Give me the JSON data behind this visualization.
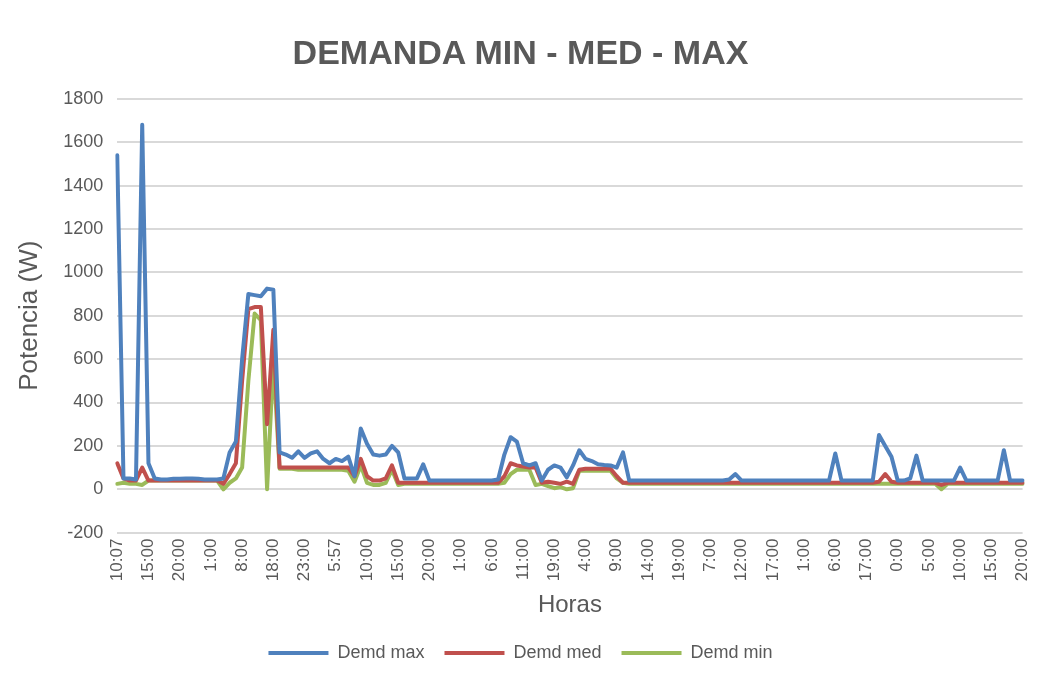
{
  "chart_data": {
    "type": "line",
    "title": "DEMANDA MIN - MED - MAX",
    "xlabel": "Horas",
    "ylabel": "Potencia (W)",
    "categories": [
      "10:07",
      null,
      null,
      null,
      null,
      "15:00",
      null,
      null,
      null,
      null,
      "20:00",
      null,
      null,
      null,
      null,
      "1:00",
      null,
      null,
      null,
      null,
      "8:00",
      null,
      null,
      null,
      null,
      "18:00",
      null,
      null,
      null,
      null,
      "23:00",
      null,
      null,
      null,
      null,
      "5:57",
      null,
      null,
      null,
      null,
      "10:00",
      null,
      null,
      null,
      null,
      "15:00",
      null,
      null,
      null,
      null,
      "20:00",
      null,
      null,
      null,
      null,
      "1:00",
      null,
      null,
      null,
      null,
      "6:00",
      null,
      null,
      null,
      null,
      "11:00",
      null,
      null,
      null,
      null,
      "19:00",
      null,
      null,
      null,
      null,
      "4:00",
      null,
      null,
      null,
      null,
      "9:00",
      null,
      null,
      null,
      null,
      "14:00",
      null,
      null,
      null,
      null,
      "19:00",
      null,
      null,
      null,
      null,
      "7:00",
      null,
      null,
      null,
      null,
      "12:00",
      null,
      null,
      null,
      null,
      "17:00",
      null,
      null,
      null,
      null,
      "1:00",
      null,
      null,
      null,
      null,
      "6:00",
      null,
      null,
      null,
      null,
      "17:00",
      null,
      null,
      null,
      null,
      "0:00",
      null,
      null,
      null,
      null,
      "5:00",
      null,
      null,
      null,
      null,
      "10:00",
      null,
      null,
      null,
      null,
      "15:00",
      null,
      null,
      null,
      null,
      "20:00"
    ],
    "series": [
      {
        "name": "Demd max",
        "color": "#4f81bd",
        "values": [
          1540,
          50,
          50,
          45,
          1680,
          120,
          50,
          45,
          45,
          48,
          48,
          50,
          50,
          48,
          45,
          45,
          45,
          50,
          170,
          220,
          600,
          900,
          895,
          890,
          925,
          920,
          170,
          160,
          145,
          175,
          145,
          165,
          175,
          140,
          120,
          140,
          130,
          150,
          60,
          280,
          210,
          160,
          155,
          160,
          200,
          170,
          50,
          50,
          50,
          115,
          40,
          40,
          40,
          40,
          40,
          40,
          40,
          40,
          40,
          40,
          40,
          45,
          160,
          240,
          220,
          120,
          110,
          120,
          40,
          90,
          110,
          100,
          55,
          110,
          180,
          140,
          130,
          115,
          112,
          110,
          100,
          170,
          40,
          40,
          40,
          40,
          40,
          40,
          40,
          40,
          40,
          40,
          40,
          40,
          40,
          40,
          40,
          40,
          45,
          70,
          40,
          40,
          40,
          40,
          40,
          40,
          40,
          40,
          40,
          40,
          40,
          40,
          40,
          40,
          40,
          165,
          40,
          40,
          40,
          40,
          40,
          40,
          250,
          200,
          150,
          40,
          40,
          50,
          155,
          40,
          40,
          40,
          40,
          40,
          40,
          100,
          40,
          40,
          40,
          40,
          40,
          40,
          180,
          40,
          40,
          40
        ]
      },
      {
        "name": "Demd med",
        "color": "#c0504d",
        "values": [
          120,
          50,
          40,
          40,
          100,
          40,
          40,
          40,
          40,
          40,
          40,
          40,
          40,
          40,
          40,
          40,
          40,
          25,
          70,
          120,
          500,
          830,
          840,
          840,
          300,
          735,
          100,
          100,
          100,
          100,
          100,
          100,
          100,
          100,
          100,
          100,
          100,
          100,
          60,
          140,
          60,
          40,
          40,
          50,
          110,
          30,
          30,
          30,
          30,
          30,
          30,
          30,
          30,
          30,
          30,
          30,
          30,
          30,
          30,
          30,
          30,
          30,
          60,
          120,
          110,
          105,
          100,
          100,
          30,
          35,
          30,
          25,
          35,
          25,
          90,
          95,
          95,
          95,
          95,
          95,
          60,
          30,
          30,
          30,
          30,
          30,
          30,
          30,
          30,
          30,
          30,
          30,
          30,
          30,
          30,
          30,
          30,
          30,
          30,
          30,
          30,
          30,
          30,
          30,
          30,
          30,
          30,
          30,
          30,
          30,
          30,
          30,
          30,
          30,
          30,
          30,
          30,
          30,
          30,
          30,
          30,
          30,
          35,
          70,
          35,
          30,
          30,
          30,
          30,
          30,
          30,
          30,
          20,
          30,
          30,
          30,
          30,
          30,
          30,
          30,
          30,
          30,
          30,
          30,
          30,
          30
        ]
      },
      {
        "name": "Demd min",
        "color": "#9bbb59",
        "values": [
          25,
          30,
          25,
          25,
          20,
          40,
          40,
          40,
          40,
          40,
          40,
          40,
          40,
          40,
          40,
          40,
          40,
          0,
          30,
          50,
          100,
          500,
          810,
          780,
          0,
          590,
          95,
          95,
          95,
          90,
          90,
          90,
          90,
          90,
          90,
          90,
          90,
          85,
          35,
          110,
          30,
          20,
          20,
          30,
          90,
          20,
          25,
          25,
          25,
          25,
          25,
          25,
          25,
          25,
          25,
          25,
          25,
          25,
          25,
          25,
          25,
          25,
          30,
          70,
          90,
          90,
          90,
          20,
          25,
          15,
          5,
          10,
          0,
          5,
          85,
          85,
          85,
          85,
          85,
          85,
          50,
          30,
          25,
          25,
          25,
          25,
          25,
          25,
          25,
          25,
          25,
          25,
          25,
          25,
          25,
          25,
          25,
          25,
          25,
          25,
          25,
          25,
          25,
          25,
          25,
          25,
          25,
          25,
          25,
          25,
          25,
          25,
          25,
          25,
          25,
          25,
          25,
          25,
          25,
          25,
          25,
          25,
          25,
          25,
          25,
          25,
          25,
          25,
          25,
          25,
          25,
          25,
          0,
          25,
          25,
          25,
          25,
          25,
          25,
          25,
          25,
          25,
          25,
          25,
          25,
          25
        ]
      }
    ],
    "ylim": [
      -200,
      1800
    ],
    "yticks": [
      -200,
      0,
      200,
      400,
      600,
      800,
      1000,
      1200,
      1400,
      1600,
      1800
    ],
    "grid": "y",
    "legend": "bottom",
    "marker": "none",
    "line_style": "solid"
  }
}
